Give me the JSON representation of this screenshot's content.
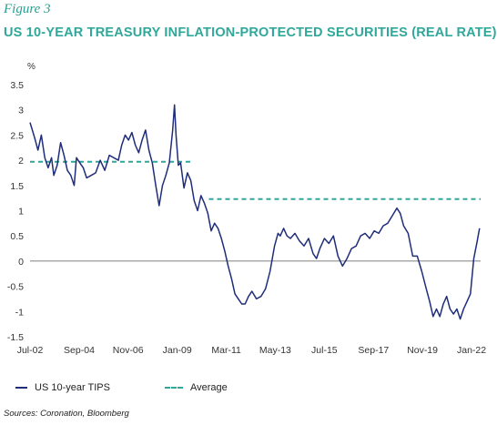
{
  "figure_label": "Figure 3",
  "title": "US 10-YEAR TREASURY INFLATION-PROTECTED SECURITIES (REAL RATE)",
  "unit_label": "%",
  "source": "Sources: Coronation, Bloomberg",
  "colors": {
    "series": "#1f2d7a",
    "average": "#2fa89a",
    "title": "#2fa89a"
  },
  "legend": {
    "series_label": "US 10-year TIPS",
    "average_label": "Average"
  },
  "chart_data": {
    "type": "line",
    "title": "US 10-YEAR TREASURY INFLATION-PROTECTED SECURITIES (REAL RATE)",
    "xlabel": "",
    "ylabel": "%",
    "xlim": [
      2002.5,
      2022.4
    ],
    "ylim": [
      -1.5,
      3.5
    ],
    "x_tick_labels": [
      "Jul-02",
      "Sep-04",
      "Nov-06",
      "Jan-09",
      "Mar-11",
      "May-13",
      "Jul-15",
      "Sep-17",
      "Nov-19",
      "Jan-22"
    ],
    "x_tick_values": [
      2002.5,
      2004.67,
      2006.83,
      2009.0,
      2011.17,
      2013.33,
      2015.5,
      2017.67,
      2019.83,
      2022.0
    ],
    "y_ticks": [
      -1.5,
      -1,
      -0.5,
      0,
      0.5,
      1,
      1.5,
      2,
      2.5,
      3,
      3.5
    ],
    "grid": false,
    "legend_position": "bottom",
    "series": [
      {
        "name": "US 10-year TIPS",
        "x": [
          2002.5,
          2002.7,
          2002.85,
          2003.0,
          2003.15,
          2003.3,
          2003.45,
          2003.55,
          2003.7,
          2003.85,
          2004.0,
          2004.15,
          2004.3,
          2004.45,
          2004.55,
          2004.7,
          2004.85,
          2005.0,
          2005.2,
          2005.4,
          2005.6,
          2005.8,
          2006.0,
          2006.2,
          2006.4,
          2006.55,
          2006.7,
          2006.85,
          2007.0,
          2007.15,
          2007.3,
          2007.45,
          2007.6,
          2007.75,
          2007.9,
          2008.05,
          2008.2,
          2008.35,
          2008.5,
          2008.65,
          2008.8,
          2008.88,
          2008.95,
          2009.05,
          2009.15,
          2009.3,
          2009.45,
          2009.6,
          2009.75,
          2009.9,
          2010.05,
          2010.2,
          2010.35,
          2010.5,
          2010.65,
          2010.8,
          2010.95,
          2011.1,
          2011.25,
          2011.4,
          2011.55,
          2011.7,
          2011.85,
          2012.0,
          2012.15,
          2012.3,
          2012.5,
          2012.7,
          2012.9,
          2013.1,
          2013.3,
          2013.45,
          2013.55,
          2013.7,
          2013.85,
          2014.0,
          2014.2,
          2014.4,
          2014.6,
          2014.8,
          2015.0,
          2015.15,
          2015.3,
          2015.5,
          2015.7,
          2015.9,
          2016.1,
          2016.3,
          2016.5,
          2016.7,
          2016.9,
          2017.1,
          2017.3,
          2017.5,
          2017.7,
          2017.9,
          2018.1,
          2018.3,
          2018.5,
          2018.7,
          2018.85,
          2019.0,
          2019.2,
          2019.4,
          2019.6,
          2019.8,
          2020.0,
          2020.15,
          2020.3,
          2020.45,
          2020.6,
          2020.75,
          2020.9,
          2021.05,
          2021.2,
          2021.35,
          2021.5,
          2021.65,
          2021.8,
          2021.95,
          2022.1,
          2022.25,
          2022.35
        ],
        "values": [
          2.75,
          2.45,
          2.2,
          2.5,
          2.05,
          1.85,
          2.05,
          1.7,
          1.9,
          2.35,
          2.1,
          1.8,
          1.7,
          1.5,
          2.05,
          1.95,
          1.85,
          1.65,
          1.7,
          1.75,
          2.0,
          1.8,
          2.1,
          2.05,
          2.0,
          2.3,
          2.5,
          2.4,
          2.55,
          2.3,
          2.15,
          2.4,
          2.6,
          2.2,
          1.95,
          1.5,
          1.1,
          1.5,
          1.7,
          1.95,
          2.6,
          3.1,
          2.5,
          1.9,
          1.95,
          1.45,
          1.75,
          1.6,
          1.2,
          1.0,
          1.3,
          1.15,
          0.95,
          0.6,
          0.75,
          0.65,
          0.45,
          0.2,
          -0.1,
          -0.35,
          -0.65,
          -0.75,
          -0.85,
          -0.85,
          -0.7,
          -0.6,
          -0.75,
          -0.7,
          -0.55,
          -0.2,
          0.3,
          0.55,
          0.5,
          0.65,
          0.5,
          0.45,
          0.55,
          0.4,
          0.3,
          0.45,
          0.15,
          0.05,
          0.25,
          0.45,
          0.35,
          0.5,
          0.1,
          -0.1,
          0.05,
          0.25,
          0.3,
          0.5,
          0.55,
          0.45,
          0.6,
          0.55,
          0.7,
          0.75,
          0.9,
          1.05,
          0.95,
          0.7,
          0.55,
          0.1,
          0.1,
          -0.2,
          -0.55,
          -0.8,
          -1.1,
          -0.95,
          -1.1,
          -0.85,
          -0.7,
          -0.95,
          -1.05,
          -0.95,
          -1.15,
          -0.95,
          -0.8,
          -0.65,
          0.05,
          0.4,
          0.65
        ]
      }
    ],
    "average": {
      "name": "Average",
      "segments": [
        {
          "x_start": 2002.5,
          "x_end": 2009.6,
          "value": 1.97
        },
        {
          "x_start": 2010.4,
          "x_end": 2022.4,
          "value": 1.23
        }
      ]
    }
  }
}
